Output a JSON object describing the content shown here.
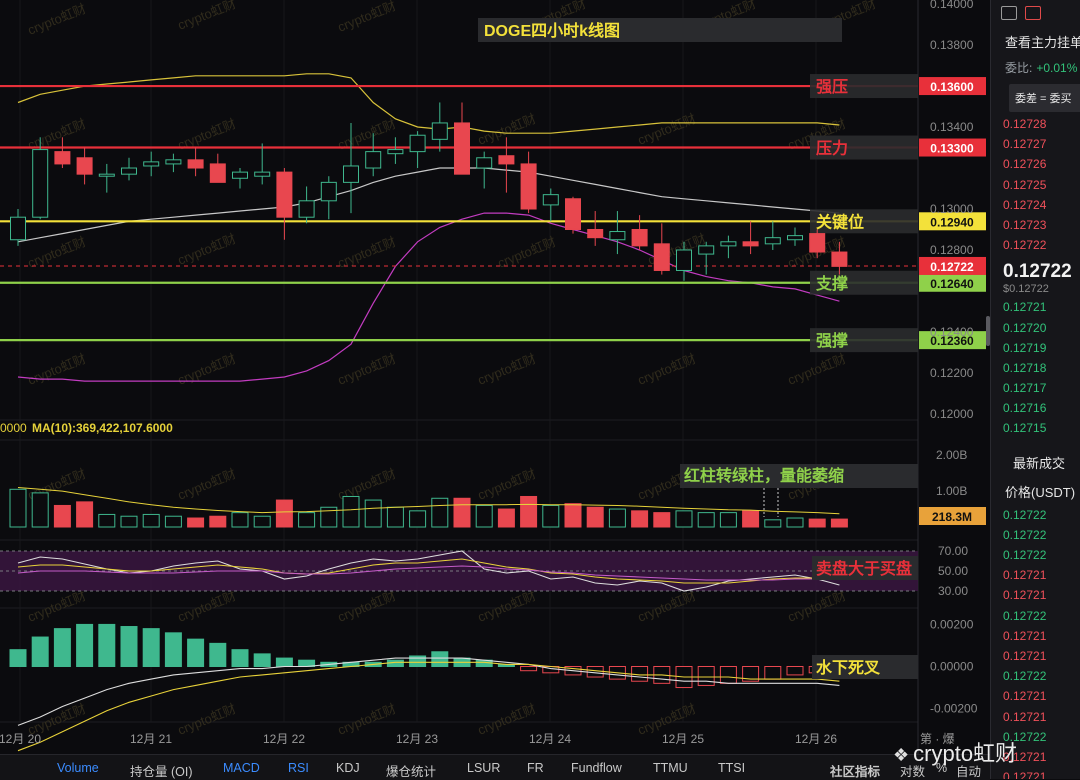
{
  "chart_data": [
    {
      "type": "candlestick",
      "title": "DOGE四小时k线图",
      "x_tick_labels": [
        "12月 20",
        "12月 21",
        "12月 22",
        "12月 23",
        "12月 24",
        "12月 25",
        "12月 26"
      ],
      "y_tick_labels": [
        "0.14000",
        "0.13800",
        "0.13400",
        "0.13000",
        "0.12800",
        "0.12400",
        "0.12200",
        "0.12000"
      ],
      "ylim": [
        0.1198,
        0.1402
      ],
      "candles": [
        {
          "o": 0.1285,
          "h": 0.13,
          "l": 0.1282,
          "c": 0.1296
        },
        {
          "o": 0.1296,
          "h": 0.1335,
          "l": 0.1295,
          "c": 0.1329
        },
        {
          "o": 0.1328,
          "h": 0.1335,
          "l": 0.132,
          "c": 0.1322
        },
        {
          "o": 0.1325,
          "h": 0.133,
          "l": 0.1312,
          "c": 0.1317
        },
        {
          "o": 0.1316,
          "h": 0.1322,
          "l": 0.1308,
          "c": 0.1317
        },
        {
          "o": 0.1317,
          "h": 0.1325,
          "l": 0.1314,
          "c": 0.132
        },
        {
          "o": 0.1321,
          "h": 0.1328,
          "l": 0.1316,
          "c": 0.1323
        },
        {
          "o": 0.1322,
          "h": 0.1327,
          "l": 0.1318,
          "c": 0.1324
        },
        {
          "o": 0.1324,
          "h": 0.133,
          "l": 0.1316,
          "c": 0.132
        },
        {
          "o": 0.1322,
          "h": 0.1327,
          "l": 0.1313,
          "c": 0.1313
        },
        {
          "o": 0.1315,
          "h": 0.132,
          "l": 0.131,
          "c": 0.1318
        },
        {
          "o": 0.1316,
          "h": 0.1332,
          "l": 0.1312,
          "c": 0.1318
        },
        {
          "o": 0.1318,
          "h": 0.132,
          "l": 0.1285,
          "c": 0.1296
        },
        {
          "o": 0.1296,
          "h": 0.1311,
          "l": 0.1293,
          "c": 0.1304
        },
        {
          "o": 0.1304,
          "h": 0.1316,
          "l": 0.1295,
          "c": 0.1313
        },
        {
          "o": 0.1313,
          "h": 0.1342,
          "l": 0.1298,
          "c": 0.1321
        },
        {
          "o": 0.132,
          "h": 0.1337,
          "l": 0.1316,
          "c": 0.1328
        },
        {
          "o": 0.1327,
          "h": 0.1335,
          "l": 0.1322,
          "c": 0.1329
        },
        {
          "o": 0.1328,
          "h": 0.1338,
          "l": 0.132,
          "c": 0.1336
        },
        {
          "o": 0.1334,
          "h": 0.1352,
          "l": 0.1328,
          "c": 0.1342
        },
        {
          "o": 0.1342,
          "h": 0.1352,
          "l": 0.1318,
          "c": 0.1317
        },
        {
          "o": 0.132,
          "h": 0.1328,
          "l": 0.131,
          "c": 0.1325
        },
        {
          "o": 0.1326,
          "h": 0.1335,
          "l": 0.1308,
          "c": 0.1322
        },
        {
          "o": 0.1322,
          "h": 0.1328,
          "l": 0.1298,
          "c": 0.13
        },
        {
          "o": 0.1302,
          "h": 0.131,
          "l": 0.1294,
          "c": 0.1307
        },
        {
          "o": 0.1305,
          "h": 0.1306,
          "l": 0.1288,
          "c": 0.129
        },
        {
          "o": 0.129,
          "h": 0.1299,
          "l": 0.1282,
          "c": 0.1286
        },
        {
          "o": 0.1285,
          "h": 0.1299,
          "l": 0.1278,
          "c": 0.1289
        },
        {
          "o": 0.129,
          "h": 0.1297,
          "l": 0.128,
          "c": 0.1282
        },
        {
          "o": 0.1283,
          "h": 0.1293,
          "l": 0.1268,
          "c": 0.127
        },
        {
          "o": 0.127,
          "h": 0.1284,
          "l": 0.1265,
          "c": 0.128
        },
        {
          "o": 0.1278,
          "h": 0.1284,
          "l": 0.1268,
          "c": 0.1282
        },
        {
          "o": 0.1282,
          "h": 0.1287,
          "l": 0.1276,
          "c": 0.1284
        },
        {
          "o": 0.1284,
          "h": 0.1294,
          "l": 0.1278,
          "c": 0.1282
        },
        {
          "o": 0.1283,
          "h": 0.1294,
          "l": 0.128,
          "c": 0.1286
        },
        {
          "o": 0.1285,
          "h": 0.1291,
          "l": 0.1282,
          "c": 0.1287
        },
        {
          "o": 0.1288,
          "h": 0.129,
          "l": 0.1276,
          "c": 0.1279
        },
        {
          "o": 0.1279,
          "h": 0.1284,
          "l": 0.1268,
          "c": 0.1272
        }
      ],
      "horizontal_levels": [
        {
          "label": "强压",
          "value": 0.136,
          "value_text": "0.13600",
          "color": "#e8303a",
          "label_color": "#e8303a"
        },
        {
          "label": "压力",
          "value": 0.133,
          "value_text": "0.13300",
          "color": "#e8303a",
          "label_color": "#e8303a"
        },
        {
          "label": "关键位",
          "value": 0.1294,
          "value_text": "0.12940",
          "color": "#f3e13a",
          "label_color": "#f3e13a"
        },
        {
          "label": "支撑",
          "value": 0.1264,
          "value_text": "0.12640",
          "color": "#8fd14a",
          "label_color": "#8fd14a"
        },
        {
          "label": "强撑",
          "value": 0.1236,
          "value_text": "0.12360",
          "color": "#8fd14a",
          "label_color": "#8fd14a"
        }
      ],
      "current_price": {
        "value": 0.12722,
        "value_text": "0.12722",
        "color": "#e8303a"
      },
      "bollinger": {
        "upper": [
          0.1352,
          0.1356,
          0.1358,
          0.136,
          0.1361,
          0.1362,
          0.1363,
          0.1364,
          0.1365,
          0.1365,
          0.1365,
          0.1365,
          0.1365,
          0.1366,
          0.1366,
          0.1364,
          0.1352,
          0.1344,
          0.134,
          0.1339,
          0.134,
          0.1338,
          0.1337,
          0.1337,
          0.1337,
          0.1338,
          0.1339,
          0.134,
          0.1341,
          0.1342,
          0.1342,
          0.1342,
          0.1342,
          0.1342,
          0.1342,
          0.1342,
          0.1342,
          0.1341
        ],
        "middle": [
          0.1284,
          0.1286,
          0.1288,
          0.129,
          0.1292,
          0.1294,
          0.1295,
          0.1296,
          0.1297,
          0.1298,
          0.1299,
          0.13,
          0.1301,
          0.1303,
          0.1306,
          0.1309,
          0.1313,
          0.1316,
          0.1318,
          0.132,
          0.132,
          0.132,
          0.1319,
          0.1318,
          0.1316,
          0.1314,
          0.1312,
          0.131,
          0.1308,
          0.1306,
          0.1305,
          0.1304,
          0.1303,
          0.1302,
          0.1301,
          0.13,
          0.1299,
          0.1298
        ],
        "lower": [
          0.1218,
          0.1217,
          0.1217,
          0.1216,
          0.1216,
          0.1216,
          0.1216,
          0.1216,
          0.1216,
          0.1216,
          0.1216,
          0.1217,
          0.1218,
          0.1221,
          0.1226,
          0.1234,
          0.1254,
          0.1272,
          0.1284,
          0.1291,
          0.1295,
          0.1298,
          0.1298,
          0.1297,
          0.1293,
          0.129,
          0.1287,
          0.1284,
          0.128,
          0.1275,
          0.127,
          0.1267,
          0.1265,
          0.1264,
          0.1262,
          0.1261,
          0.1258,
          0.1255
        ]
      }
    },
    {
      "type": "bar",
      "title": "MA(10):369,422,107.6000",
      "legend_prefix": "0000",
      "y_tick_labels": [
        "2.00B",
        "1.00B"
      ],
      "ylim": [
        0,
        2.2
      ],
      "values": [
        1.05,
        0.95,
        0.6,
        0.7,
        0.35,
        0.3,
        0.35,
        0.3,
        0.25,
        0.3,
        0.4,
        0.3,
        0.75,
        0.4,
        0.55,
        0.85,
        0.75,
        0.55,
        0.45,
        0.8,
        0.8,
        0.6,
        0.5,
        0.85,
        0.6,
        0.65,
        0.55,
        0.5,
        0.45,
        0.4,
        0.45,
        0.4,
        0.4,
        0.45,
        0.2,
        0.25,
        0.22,
        0.22
      ],
      "up": [
        true,
        true,
        false,
        false,
        true,
        true,
        true,
        true,
        false,
        false,
        true,
        true,
        false,
        true,
        true,
        true,
        true,
        true,
        true,
        true,
        false,
        true,
        false,
        false,
        true,
        false,
        false,
        true,
        false,
        false,
        true,
        true,
        true,
        false,
        true,
        true,
        false,
        false
      ],
      "ma_values": [
        1.1,
        1.05,
        1.0,
        0.9,
        0.8,
        0.7,
        0.62,
        0.55,
        0.5,
        0.46,
        0.43,
        0.4,
        0.42,
        0.43,
        0.45,
        0.48,
        0.52,
        0.55,
        0.57,
        0.6,
        0.62,
        0.62,
        0.62,
        0.63,
        0.62,
        0.62,
        0.61,
        0.6,
        0.58,
        0.55,
        0.52,
        0.5,
        0.48,
        0.47,
        0.44,
        0.42,
        0.4,
        0.37
      ],
      "current_label": "218.3M",
      "annotation": "红柱转绿柱，量能萎缩"
    },
    {
      "type": "line",
      "y_tick_labels": [
        "70.00",
        "50.00",
        "30.00"
      ],
      "ylim": [
        25,
        75
      ],
      "series": [
        {
          "color": "#dddddd",
          "values": [
            58,
            64,
            62,
            57,
            52,
            48,
            50,
            55,
            58,
            60,
            52,
            50,
            42,
            45,
            52,
            58,
            62,
            60,
            62,
            66,
            70,
            52,
            48,
            50,
            42,
            44,
            38,
            36,
            40,
            38,
            30,
            34,
            40,
            42,
            44,
            46,
            42,
            36
          ]
        },
        {
          "color": "#e8d23a",
          "values": [
            54,
            56,
            56,
            54,
            52,
            50,
            50,
            52,
            54,
            56,
            54,
            52,
            48,
            47,
            48,
            52,
            56,
            58,
            58,
            60,
            62,
            58,
            54,
            52,
            48,
            47,
            44,
            42,
            41,
            40,
            38,
            38,
            38,
            40,
            42,
            43,
            43,
            42
          ]
        },
        {
          "color": "#c45cc8",
          "values": [
            48,
            50,
            50,
            50,
            49,
            48,
            48,
            48,
            49,
            50,
            50,
            50,
            48,
            47,
            47,
            48,
            50,
            52,
            53,
            54,
            55,
            54,
            52,
            51,
            49,
            48,
            46,
            45,
            44,
            43,
            42,
            41,
            41,
            41,
            41,
            42,
            42,
            42
          ]
        }
      ],
      "annotation": "卖盘大于买盘"
    },
    {
      "type": "bar",
      "y_tick_labels": [
        "0.00200",
        "0.00000",
        "-0.00200"
      ],
      "ylim": [
        -0.0024,
        0.0024
      ],
      "values": [
        0.0008,
        0.0014,
        0.0018,
        0.002,
        0.002,
        0.0019,
        0.0018,
        0.0016,
        0.0013,
        0.0011,
        0.0008,
        0.0006,
        0.0004,
        0.0003,
        0.0002,
        0.0002,
        0.0002,
        0.0003,
        0.0005,
        0.0007,
        0.0004,
        0.0003,
        0.0001,
        -0.0002,
        -0.0003,
        -0.0004,
        -0.0005,
        -0.0006,
        -0.0007,
        -0.0008,
        -0.001,
        -0.0009,
        -0.0008,
        -0.0007,
        -0.0006,
        -0.0004,
        -0.0003,
        -0.0002
      ],
      "dif": [
        -0.0028,
        -0.0024,
        -0.0019,
        -0.0015,
        -0.0011,
        -0.0008,
        -0.0006,
        -0.0004,
        -0.0003,
        -0.0002,
        -0.0001,
        -0.0001,
        0.0,
        0.0,
        0.0001,
        0.0002,
        0.0003,
        0.0004,
        0.0004,
        0.0004,
        0.0004,
        0.0003,
        0.0002,
        0.0001,
        -0.0001,
        -0.0002,
        -0.0003,
        -0.0004,
        -0.0005,
        -0.0006,
        -0.0007,
        -0.0007,
        -0.0008,
        -0.0008,
        -0.0008,
        -0.0008,
        -0.0008,
        -0.0009
      ],
      "dea": [
        -0.004,
        -0.0036,
        -0.0031,
        -0.0026,
        -0.0021,
        -0.0017,
        -0.0014,
        -0.0011,
        -0.0009,
        -0.0007,
        -0.0005,
        -0.0004,
        -0.0003,
        -0.0002,
        -0.0001,
        0.0,
        0.0001,
        0.0002,
        0.0002,
        0.0002,
        0.0002,
        0.0002,
        0.0001,
        0.0001,
        0.0,
        -0.0001,
        -0.0002,
        -0.0003,
        -0.0004,
        -0.0004,
        -0.0005,
        -0.0005,
        -0.0005,
        -0.0006,
        -0.0006,
        -0.0006,
        -0.0006,
        -0.0007
      ],
      "annotation": "水下死叉"
    }
  ],
  "watermark": "crypto虹财",
  "colors": {
    "up": "#3fb88e",
    "down": "#e8474f",
    "background": "#0b0b0e"
  },
  "right_axis_partial_labels": {
    "prices_top": "0.14000",
    "prices": [
      "0.13800",
      "0.13400",
      "0.13000",
      "0.12800",
      "0.12400",
      "0.12200",
      "0.12000"
    ]
  },
  "side_panel": {
    "title": "查看主力挂单",
    "ratio_label": "委比:",
    "ratio_value": "+0.01%",
    "tooltip": "委差 = 委买",
    "asks": [
      "0.12728",
      "0.12727",
      "0.12726",
      "0.12725",
      "0.12724",
      "0.12723",
      "0.12722"
    ],
    "last_price": "0.12722",
    "last_price_usd": "$0.12722",
    "bids": [
      "0.12721",
      "0.12720",
      "0.12719",
      "0.12718",
      "0.12717",
      "0.12716",
      "0.12715"
    ],
    "trades_title": "最新成交",
    "price_header": "价格(USDT)",
    "trades": [
      {
        "price": "0.12722",
        "side": "bid"
      },
      {
        "price": "0.12722",
        "side": "bid"
      },
      {
        "price": "0.12722",
        "side": "bid"
      },
      {
        "price": "0.12721",
        "side": "ask"
      },
      {
        "price": "0.12721",
        "side": "ask"
      },
      {
        "price": "0.12722",
        "side": "bid"
      },
      {
        "price": "0.12721",
        "side": "ask"
      },
      {
        "price": "0.12721",
        "side": "ask"
      },
      {
        "price": "0.12722",
        "side": "bid"
      },
      {
        "price": "0.12721",
        "side": "ask"
      },
      {
        "price": "0.12721",
        "side": "ask"
      },
      {
        "price": "0.12722",
        "side": "bid"
      },
      {
        "price": "0.12721",
        "side": "ask"
      },
      {
        "price": "0.12721",
        "side": "ask"
      }
    ]
  },
  "tabs": [
    "Volume",
    "持仓量 (OI)",
    "MACD",
    "RSI",
    "KDJ",
    "爆仓统计",
    "LSUR",
    "FR",
    "Fundflow",
    "TTMU",
    "TTSI"
  ],
  "active_tabs": [
    "Volume",
    "MACD",
    "RSI"
  ],
  "tab_right": [
    "社区指标",
    "对数",
    "%",
    "自动"
  ],
  "footer_logo": "crypto虹财",
  "footer_partial": "第 · 爆"
}
